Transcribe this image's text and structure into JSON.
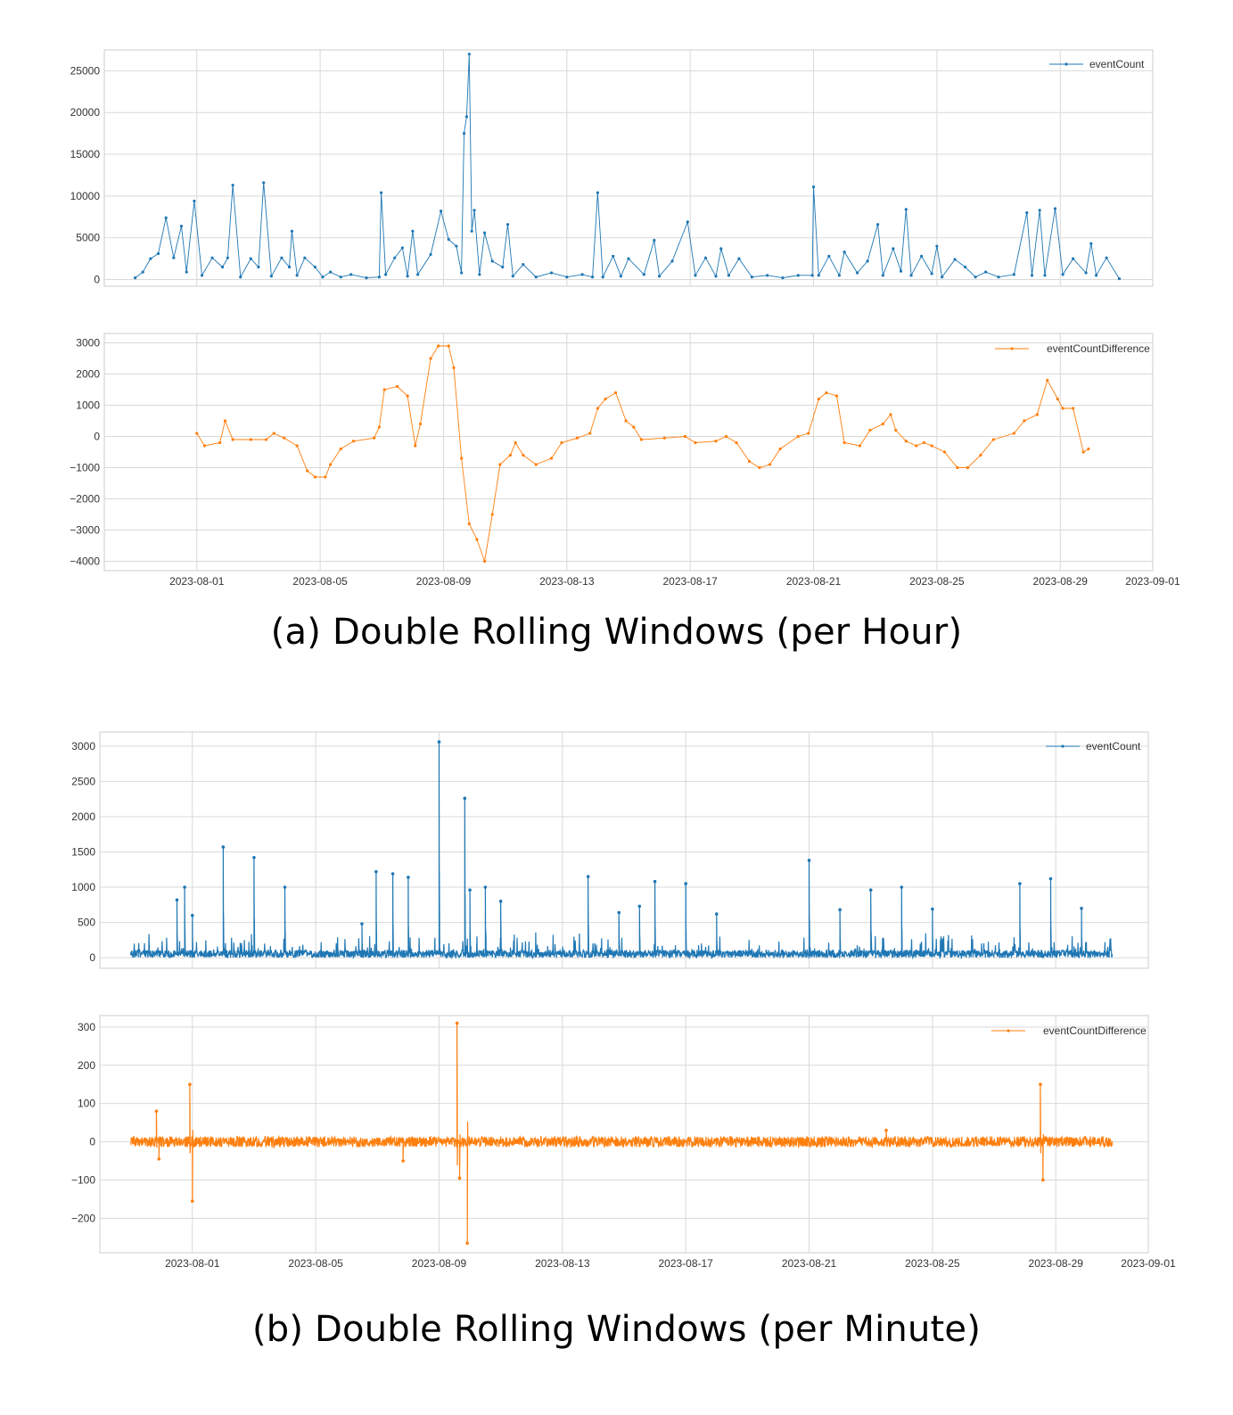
{
  "captions": {
    "a": "(a) Double Rolling Windows (per Hour)",
    "b": "(b) Double Rolling Windows (per Minute)"
  },
  "colors": {
    "blue": "#1f77b4",
    "orange": "#ff7f0e",
    "grid": "#d9d9d9",
    "frame": "#cccccc"
  },
  "x_ticks": [
    "2023-08-01",
    "2023-08-05",
    "2023-08-09",
    "2023-08-13",
    "2023-08-17",
    "2023-08-21",
    "2023-08-25",
    "2023-08-29",
    "2023-09-01"
  ],
  "chart_data": [
    {
      "type": "line",
      "panel": "a-top",
      "grid": true,
      "legend": "top-right",
      "series": [
        {
          "name": "eventCount",
          "color": "#1f77b4",
          "marker": "dot"
        }
      ],
      "xlim": [
        "2023-07-29",
        "2023-09-01"
      ],
      "ylim": [
        -800,
        27500
      ],
      "yticks": [
        0,
        5000,
        10000,
        15000,
        20000,
        25000
      ],
      "points": [
        [
          "2023-07-30T00:00",
          200
        ],
        [
          "2023-07-30T06:00",
          900
        ],
        [
          "2023-07-30T12:00",
          2500
        ],
        [
          "2023-07-30T18:00",
          3100
        ],
        [
          "2023-07-31T00:00",
          7400
        ],
        [
          "2023-07-31T06:00",
          2600
        ],
        [
          "2023-07-31T12:00",
          6400
        ],
        [
          "2023-07-31T16:00",
          900
        ],
        [
          "2023-07-31T22:00",
          9400
        ],
        [
          "2023-08-01T04:00",
          500
        ],
        [
          "2023-08-01T12:00",
          2600
        ],
        [
          "2023-08-01T20:00",
          1500
        ],
        [
          "2023-08-02T00:00",
          2600
        ],
        [
          "2023-08-02T04:00",
          11300
        ],
        [
          "2023-08-02T10:00",
          300
        ],
        [
          "2023-08-02T18:00",
          2500
        ],
        [
          "2023-08-03T00:00",
          1500
        ],
        [
          "2023-08-03T04:00",
          11600
        ],
        [
          "2023-08-03T10:00",
          400
        ],
        [
          "2023-08-03T18:00",
          2600
        ],
        [
          "2023-08-04T00:00",
          1500
        ],
        [
          "2023-08-04T02:00",
          5800
        ],
        [
          "2023-08-04T06:00",
          500
        ],
        [
          "2023-08-04T12:00",
          2600
        ],
        [
          "2023-08-04T20:00",
          1500
        ],
        [
          "2023-08-05T02:00",
          300
        ],
        [
          "2023-08-05T08:00",
          900
        ],
        [
          "2023-08-05T16:00",
          300
        ],
        [
          "2023-08-06T00:00",
          600
        ],
        [
          "2023-08-06T12:00",
          200
        ],
        [
          "2023-08-06T22:00",
          300
        ],
        [
          "2023-08-06T23:30",
          10400
        ],
        [
          "2023-08-07T03:00",
          600
        ],
        [
          "2023-08-07T10:00",
          2600
        ],
        [
          "2023-08-07T16:00",
          3800
        ],
        [
          "2023-08-07T20:00",
          400
        ],
        [
          "2023-08-08T00:00",
          5800
        ],
        [
          "2023-08-08T04:00",
          600
        ],
        [
          "2023-08-08T14:00",
          3000
        ],
        [
          "2023-08-08T22:00",
          8200
        ],
        [
          "2023-08-09T04:00",
          4800
        ],
        [
          "2023-08-09T10:00",
          4000
        ],
        [
          "2023-08-09T14:00",
          800
        ],
        [
          "2023-08-09T16:00",
          17500
        ],
        [
          "2023-08-09T18:00",
          19500
        ],
        [
          "2023-08-09T20:00",
          27000
        ],
        [
          "2023-08-09T22:00",
          5800
        ],
        [
          "2023-08-10T00:00",
          8300
        ],
        [
          "2023-08-10T04:00",
          600
        ],
        [
          "2023-08-10T08:00",
          5600
        ],
        [
          "2023-08-10T14:00",
          2200
        ],
        [
          "2023-08-10T22:00",
          1500
        ],
        [
          "2023-08-11T02:00",
          6600
        ],
        [
          "2023-08-11T06:00",
          400
        ],
        [
          "2023-08-11T14:00",
          1800
        ],
        [
          "2023-08-12T00:00",
          300
        ],
        [
          "2023-08-12T12:00",
          800
        ],
        [
          "2023-08-13T00:00",
          300
        ],
        [
          "2023-08-13T12:00",
          600
        ],
        [
          "2023-08-13T20:00",
          300
        ],
        [
          "2023-08-14T00:00",
          10400
        ],
        [
          "2023-08-14T04:00",
          300
        ],
        [
          "2023-08-14T12:00",
          2800
        ],
        [
          "2023-08-14T18:00",
          400
        ],
        [
          "2023-08-15T00:00",
          2500
        ],
        [
          "2023-08-15T12:00",
          600
        ],
        [
          "2023-08-15T20:00",
          4700
        ],
        [
          "2023-08-16T00:00",
          400
        ],
        [
          "2023-08-16T10:00",
          2200
        ],
        [
          "2023-08-16T22:00",
          6900
        ],
        [
          "2023-08-17T04:00",
          500
        ],
        [
          "2023-08-17T12:00",
          2600
        ],
        [
          "2023-08-17T20:00",
          400
        ],
        [
          "2023-08-18T00:00",
          3700
        ],
        [
          "2023-08-18T06:00",
          500
        ],
        [
          "2023-08-18T14:00",
          2500
        ],
        [
          "2023-08-19T00:00",
          300
        ],
        [
          "2023-08-19T12:00",
          500
        ],
        [
          "2023-08-20T00:00",
          200
        ],
        [
          "2023-08-20T12:00",
          500
        ],
        [
          "2023-08-20T23:00",
          500
        ],
        [
          "2023-08-21T00:00",
          11100
        ],
        [
          "2023-08-21T04:00",
          500
        ],
        [
          "2023-08-21T12:00",
          2800
        ],
        [
          "2023-08-21T20:00",
          500
        ],
        [
          "2023-08-22T00:00",
          3300
        ],
        [
          "2023-08-22T10:00",
          800
        ],
        [
          "2023-08-22T18:00",
          2200
        ],
        [
          "2023-08-23T02:00",
          6600
        ],
        [
          "2023-08-23T06:00",
          500
        ],
        [
          "2023-08-23T14:00",
          3700
        ],
        [
          "2023-08-23T20:00",
          1000
        ],
        [
          "2023-08-24T00:00",
          8400
        ],
        [
          "2023-08-24T04:00",
          500
        ],
        [
          "2023-08-24T12:00",
          2800
        ],
        [
          "2023-08-24T20:00",
          700
        ],
        [
          "2023-08-25T00:00",
          4000
        ],
        [
          "2023-08-25T04:00",
          300
        ],
        [
          "2023-08-25T14:00",
          2400
        ],
        [
          "2023-08-25T22:00",
          1500
        ],
        [
          "2023-08-26T06:00",
          300
        ],
        [
          "2023-08-26T14:00",
          900
        ],
        [
          "2023-08-27T00:00",
          300
        ],
        [
          "2023-08-27T12:00",
          600
        ],
        [
          "2023-08-27T22:00",
          8000
        ],
        [
          "2023-08-28T02:00",
          500
        ],
        [
          "2023-08-28T08:00",
          8300
        ],
        [
          "2023-08-28T12:00",
          500
        ],
        [
          "2023-08-28T20:00",
          8500
        ],
        [
          "2023-08-29T02:00",
          600
        ],
        [
          "2023-08-29T10:00",
          2500
        ],
        [
          "2023-08-29T20:00",
          800
        ],
        [
          "2023-08-30T00:00",
          4300
        ],
        [
          "2023-08-30T04:00",
          500
        ],
        [
          "2023-08-30T12:00",
          2600
        ],
        [
          "2023-08-30T22:00",
          100
        ]
      ]
    },
    {
      "type": "line",
      "panel": "a-bottom",
      "grid": true,
      "legend": "top-right",
      "series": [
        {
          "name": "eventCountDifference",
          "color": "#ff7f0e",
          "marker": "dot"
        }
      ],
      "xlim": [
        "2023-07-29",
        "2023-09-01"
      ],
      "ylim": [
        -4300,
        3300
      ],
      "yticks": [
        -4000,
        -3000,
        -2000,
        -1000,
        0,
        1000,
        2000,
        3000
      ],
      "points": [
        [
          "2023-08-01T00:00",
          100
        ],
        [
          "2023-08-01T06:00",
          -300
        ],
        [
          "2023-08-01T18:00",
          -200
        ],
        [
          "2023-08-01T22:00",
          500
        ],
        [
          "2023-08-02T04:00",
          -100
        ],
        [
          "2023-08-02T18:00",
          -100
        ],
        [
          "2023-08-03T06:00",
          -100
        ],
        [
          "2023-08-03T12:00",
          100
        ],
        [
          "2023-08-03T20:00",
          -50
        ],
        [
          "2023-08-04T06:00",
          -300
        ],
        [
          "2023-08-04T14:00",
          -1100
        ],
        [
          "2023-08-04T20:00",
          -1300
        ],
        [
          "2023-08-05T04:00",
          -1300
        ],
        [
          "2023-08-05T08:00",
          -900
        ],
        [
          "2023-08-05T16:00",
          -400
        ],
        [
          "2023-08-06T02:00",
          -150
        ],
        [
          "2023-08-06T18:00",
          -50
        ],
        [
          "2023-08-06T22:00",
          300
        ],
        [
          "2023-08-07T02:00",
          1500
        ],
        [
          "2023-08-07T12:00",
          1600
        ],
        [
          "2023-08-07T20:00",
          1300
        ],
        [
          "2023-08-08T02:00",
          -300
        ],
        [
          "2023-08-08T06:00",
          400
        ],
        [
          "2023-08-08T14:00",
          2500
        ],
        [
          "2023-08-08T20:00",
          2900
        ],
        [
          "2023-08-09T04:00",
          2900
        ],
        [
          "2023-08-09T08:00",
          2200
        ],
        [
          "2023-08-09T14:00",
          -700
        ],
        [
          "2023-08-09T20:00",
          -2800
        ],
        [
          "2023-08-10T02:00",
          -3300
        ],
        [
          "2023-08-10T08:00",
          -4000
        ],
        [
          "2023-08-10T14:00",
          -2500
        ],
        [
          "2023-08-10T20:00",
          -900
        ],
        [
          "2023-08-11T04:00",
          -600
        ],
        [
          "2023-08-11T08:00",
          -200
        ],
        [
          "2023-08-11T14:00",
          -600
        ],
        [
          "2023-08-12T00:00",
          -900
        ],
        [
          "2023-08-12T12:00",
          -700
        ],
        [
          "2023-08-12T20:00",
          -200
        ],
        [
          "2023-08-13T08:00",
          -50
        ],
        [
          "2023-08-13T18:00",
          100
        ],
        [
          "2023-08-14T00:00",
          900
        ],
        [
          "2023-08-14T06:00",
          1200
        ],
        [
          "2023-08-14T14:00",
          1400
        ],
        [
          "2023-08-14T22:00",
          500
        ],
        [
          "2023-08-15T04:00",
          300
        ],
        [
          "2023-08-15T10:00",
          -100
        ],
        [
          "2023-08-16T04:00",
          -50
        ],
        [
          "2023-08-16T20:00",
          0
        ],
        [
          "2023-08-17T04:00",
          -200
        ],
        [
          "2023-08-17T20:00",
          -150
        ],
        [
          "2023-08-18T04:00",
          0
        ],
        [
          "2023-08-18T12:00",
          -200
        ],
        [
          "2023-08-18T22:00",
          -800
        ],
        [
          "2023-08-19T06:00",
          -1000
        ],
        [
          "2023-08-19T14:00",
          -900
        ],
        [
          "2023-08-19T22:00",
          -400
        ],
        [
          "2023-08-20T12:00",
          0
        ],
        [
          "2023-08-20T20:00",
          100
        ],
        [
          "2023-08-21T04:00",
          1200
        ],
        [
          "2023-08-21T10:00",
          1400
        ],
        [
          "2023-08-21T18:00",
          1300
        ],
        [
          "2023-08-22T00:00",
          -200
        ],
        [
          "2023-08-22T12:00",
          -300
        ],
        [
          "2023-08-22T20:00",
          200
        ],
        [
          "2023-08-23T06:00",
          400
        ],
        [
          "2023-08-23T12:00",
          700
        ],
        [
          "2023-08-23T16:00",
          200
        ],
        [
          "2023-08-24T00:00",
          -150
        ],
        [
          "2023-08-24T08:00",
          -300
        ],
        [
          "2023-08-24T14:00",
          -200
        ],
        [
          "2023-08-24T20:00",
          -300
        ],
        [
          "2023-08-25T06:00",
          -500
        ],
        [
          "2023-08-25T16:00",
          -1000
        ],
        [
          "2023-08-26T00:00",
          -1000
        ],
        [
          "2023-08-26T10:00",
          -600
        ],
        [
          "2023-08-26T20:00",
          -100
        ],
        [
          "2023-08-27T12:00",
          100
        ],
        [
          "2023-08-27T20:00",
          500
        ],
        [
          "2023-08-28T06:00",
          700
        ],
        [
          "2023-08-28T14:00",
          1800
        ],
        [
          "2023-08-28T22:00",
          1200
        ],
        [
          "2023-08-29T02:00",
          900
        ],
        [
          "2023-08-29T10:00",
          900
        ],
        [
          "2023-08-29T18:00",
          -500
        ],
        [
          "2023-08-29T22:00",
          -400
        ]
      ]
    },
    {
      "type": "line",
      "panel": "b-top",
      "grid": true,
      "legend": "top-right",
      "series": [
        {
          "name": "eventCount",
          "color": "#1f77b4",
          "marker": "dot"
        }
      ],
      "xlim": [
        "2023-07-29",
        "2023-09-01"
      ],
      "ylim": [
        -150,
        3200
      ],
      "yticks": [
        0,
        500,
        1000,
        1500,
        2000,
        2500,
        3000
      ],
      "spikes": [
        [
          "2023-07-31T12:00",
          820
        ],
        [
          "2023-07-31T18:00",
          1000
        ],
        [
          "2023-08-01T00:00",
          600
        ],
        [
          "2023-08-02T00:00",
          1570
        ],
        [
          "2023-08-03T00:00",
          1420
        ],
        [
          "2023-08-04T00:00",
          1000
        ],
        [
          "2023-08-06T12:00",
          480
        ],
        [
          "2023-08-06T23:00",
          1220
        ],
        [
          "2023-08-07T12:00",
          1190
        ],
        [
          "2023-08-08T00:00",
          1140
        ],
        [
          "2023-08-09T00:00",
          3060
        ],
        [
          "2023-08-09T20:00",
          2260
        ],
        [
          "2023-08-10T00:00",
          960
        ],
        [
          "2023-08-10T12:00",
          1000
        ],
        [
          "2023-08-11T00:00",
          800
        ],
        [
          "2023-08-13T20:00",
          1150
        ],
        [
          "2023-08-14T20:00",
          640
        ],
        [
          "2023-08-15T12:00",
          730
        ],
        [
          "2023-08-16T00:00",
          1080
        ],
        [
          "2023-08-17T00:00",
          1050
        ],
        [
          "2023-08-18T00:00",
          620
        ],
        [
          "2023-08-21T00:00",
          1380
        ],
        [
          "2023-08-22T00:00",
          680
        ],
        [
          "2023-08-23T00:00",
          960
        ],
        [
          "2023-08-24T00:00",
          1000
        ],
        [
          "2023-08-25T00:00",
          690
        ],
        [
          "2023-08-27T20:00",
          1050
        ],
        [
          "2023-08-28T20:00",
          1120
        ],
        [
          "2023-08-29T20:00",
          700
        ]
      ]
    },
    {
      "type": "line",
      "panel": "b-bottom",
      "grid": true,
      "legend": "top-right",
      "series": [
        {
          "name": "eventCountDifference",
          "color": "#ff7f0e",
          "marker": "dot"
        }
      ],
      "xlim": [
        "2023-07-29",
        "2023-09-01"
      ],
      "ylim": [
        -290,
        330
      ],
      "yticks": [
        -200,
        -100,
        0,
        100,
        200,
        300
      ],
      "spikes": [
        [
          "2023-07-30T20:00",
          80
        ],
        [
          "2023-07-30T22:00",
          -45
        ],
        [
          "2023-07-31T22:00",
          150
        ],
        [
          "2023-08-01T00:00",
          -155
        ],
        [
          "2023-08-07T20:00",
          -50
        ],
        [
          "2023-08-09T14:00",
          310
        ],
        [
          "2023-08-09T16:00",
          -95
        ],
        [
          "2023-08-09T22:00",
          -265
        ],
        [
          "2023-08-23T12:00",
          30
        ],
        [
          "2023-08-28T12:00",
          150
        ],
        [
          "2023-08-28T14:00",
          -100
        ]
      ]
    }
  ],
  "legend_labels": {
    "a_top": "eventCount",
    "a_bottom": "eventCountDifference",
    "b_top": "eventCount",
    "b_bottom": "eventCountDifference"
  }
}
